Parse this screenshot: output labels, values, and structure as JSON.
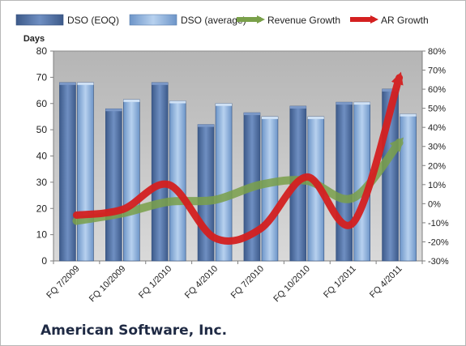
{
  "chart_data": {
    "type": "bar",
    "categories": [
      "FQ 7/2009",
      "FQ 10/2009",
      "FQ 1/2010",
      "FQ 4/2010",
      "FQ 7/2010",
      "FQ 10/2010",
      "FQ 1/2011",
      "FQ 4/2011"
    ],
    "series": [
      {
        "name": "DSO (EOQ)",
        "type": "bar",
        "axis": "left",
        "color": "#4f6fa3",
        "values": [
          68,
          58,
          68,
          52,
          56.5,
          59,
          60.5,
          65.5
        ]
      },
      {
        "name": "DSO (average)",
        "type": "bar",
        "axis": "left",
        "color": "#8fb2dd",
        "values": [
          68,
          61.5,
          61,
          60,
          55,
          55,
          60.5,
          56
        ]
      },
      {
        "name": "Revenue Growth",
        "type": "line-arrow",
        "axis": "right",
        "color": "#7aa04a",
        "values": [
          -9,
          -5,
          1,
          2,
          10,
          12,
          3,
          32
        ]
      },
      {
        "name": "AR Growth",
        "type": "line-arrow",
        "axis": "right",
        "color": "#d42020",
        "values": [
          -6,
          -3,
          10,
          -18,
          -13,
          14,
          -10,
          66
        ]
      }
    ],
    "ylabel": "Days",
    "ylim": [
      0,
      80
    ],
    "yticks": [
      "0",
      "10",
      "20",
      "30",
      "40",
      "50",
      "60",
      "70",
      "80"
    ],
    "y2lim": [
      -30,
      80
    ],
    "y2ticks": [
      "-30%",
      "-20%",
      "-10%",
      "0%",
      "10%",
      "20%",
      "30%",
      "40%",
      "50%",
      "60%",
      "70%",
      "80%"
    ],
    "grid": false,
    "legend": "top"
  },
  "company": "American Software, Inc."
}
